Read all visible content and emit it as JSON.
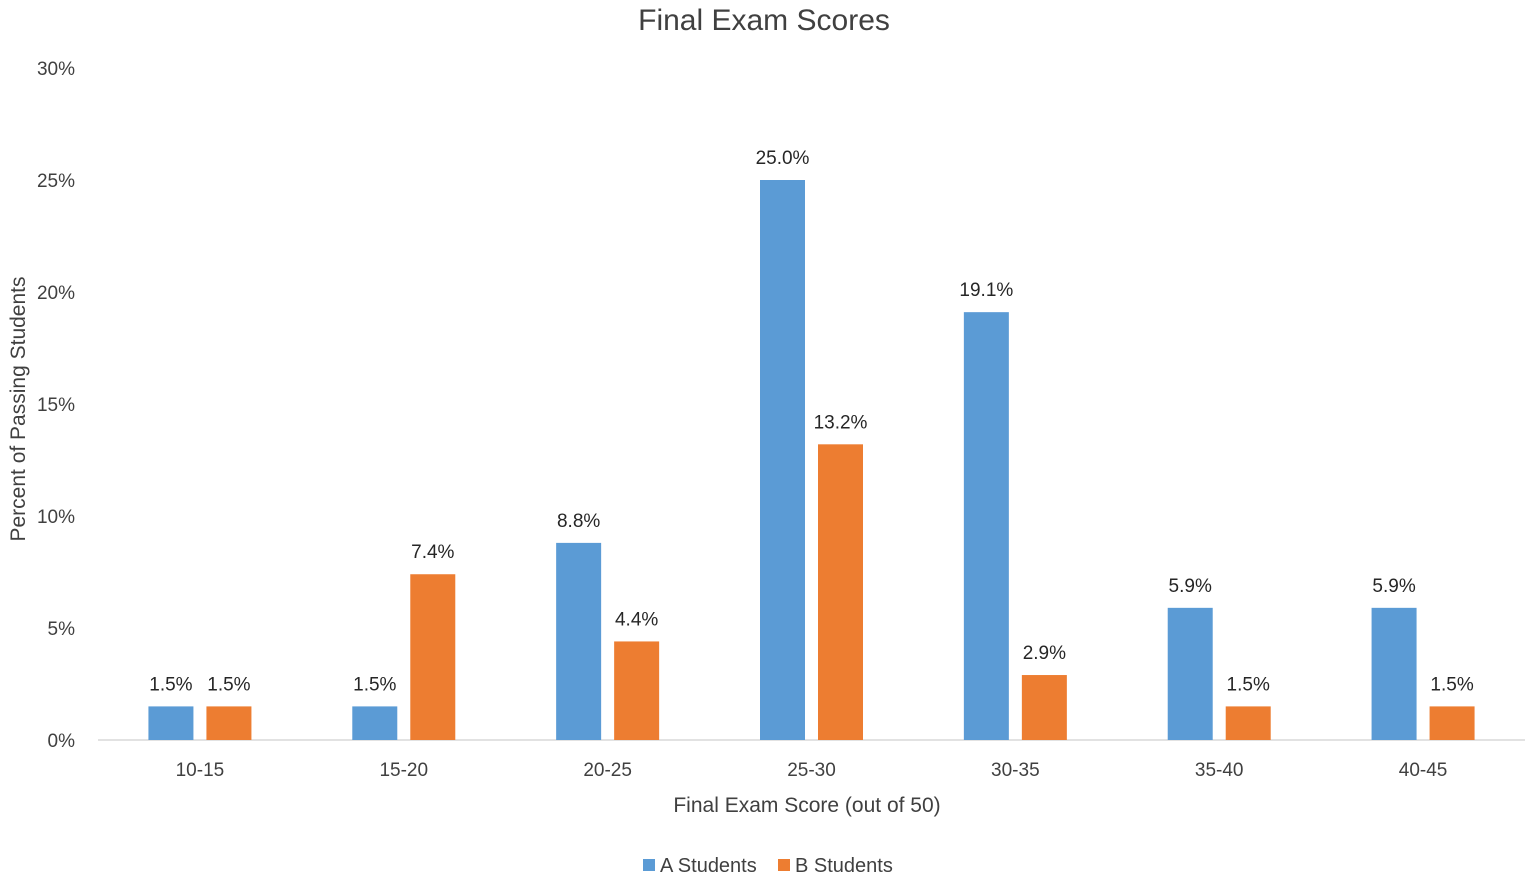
{
  "chart_data": {
    "type": "bar",
    "title": "Final Exam Scores",
    "xlabel": "Final Exam Score (out of 50)",
    "ylabel": "Percent of Passing Students",
    "categories": [
      "10-15",
      "15-20",
      "20-25",
      "25-30",
      "30-35",
      "35-40",
      "40-45"
    ],
    "series": [
      {
        "name": "A Students",
        "color": "#5B9BD5",
        "values": [
          1.5,
          1.5,
          8.8,
          25.0,
          19.1,
          5.9,
          5.9
        ],
        "labels": [
          "1.5%",
          "1.5%",
          "8.8%",
          "25.0%",
          "19.1%",
          "5.9%",
          "5.9%"
        ]
      },
      {
        "name": "B Students",
        "color": "#ED7D31",
        "values": [
          1.5,
          7.4,
          4.4,
          13.2,
          2.9,
          1.5,
          1.5
        ],
        "labels": [
          "1.5%",
          "7.4%",
          "4.4%",
          "13.2%",
          "2.9%",
          "1.5%",
          "1.5%"
        ]
      }
    ],
    "ylim": [
      0,
      30
    ],
    "yticks": [
      0,
      5,
      10,
      15,
      20,
      25,
      30
    ],
    "ytick_labels": [
      "0%",
      "5%",
      "10%",
      "15%",
      "20%",
      "25%",
      "30%"
    ],
    "grid": false,
    "legend_position": "bottom-center",
    "axis_color": "#D9D9D9"
  }
}
